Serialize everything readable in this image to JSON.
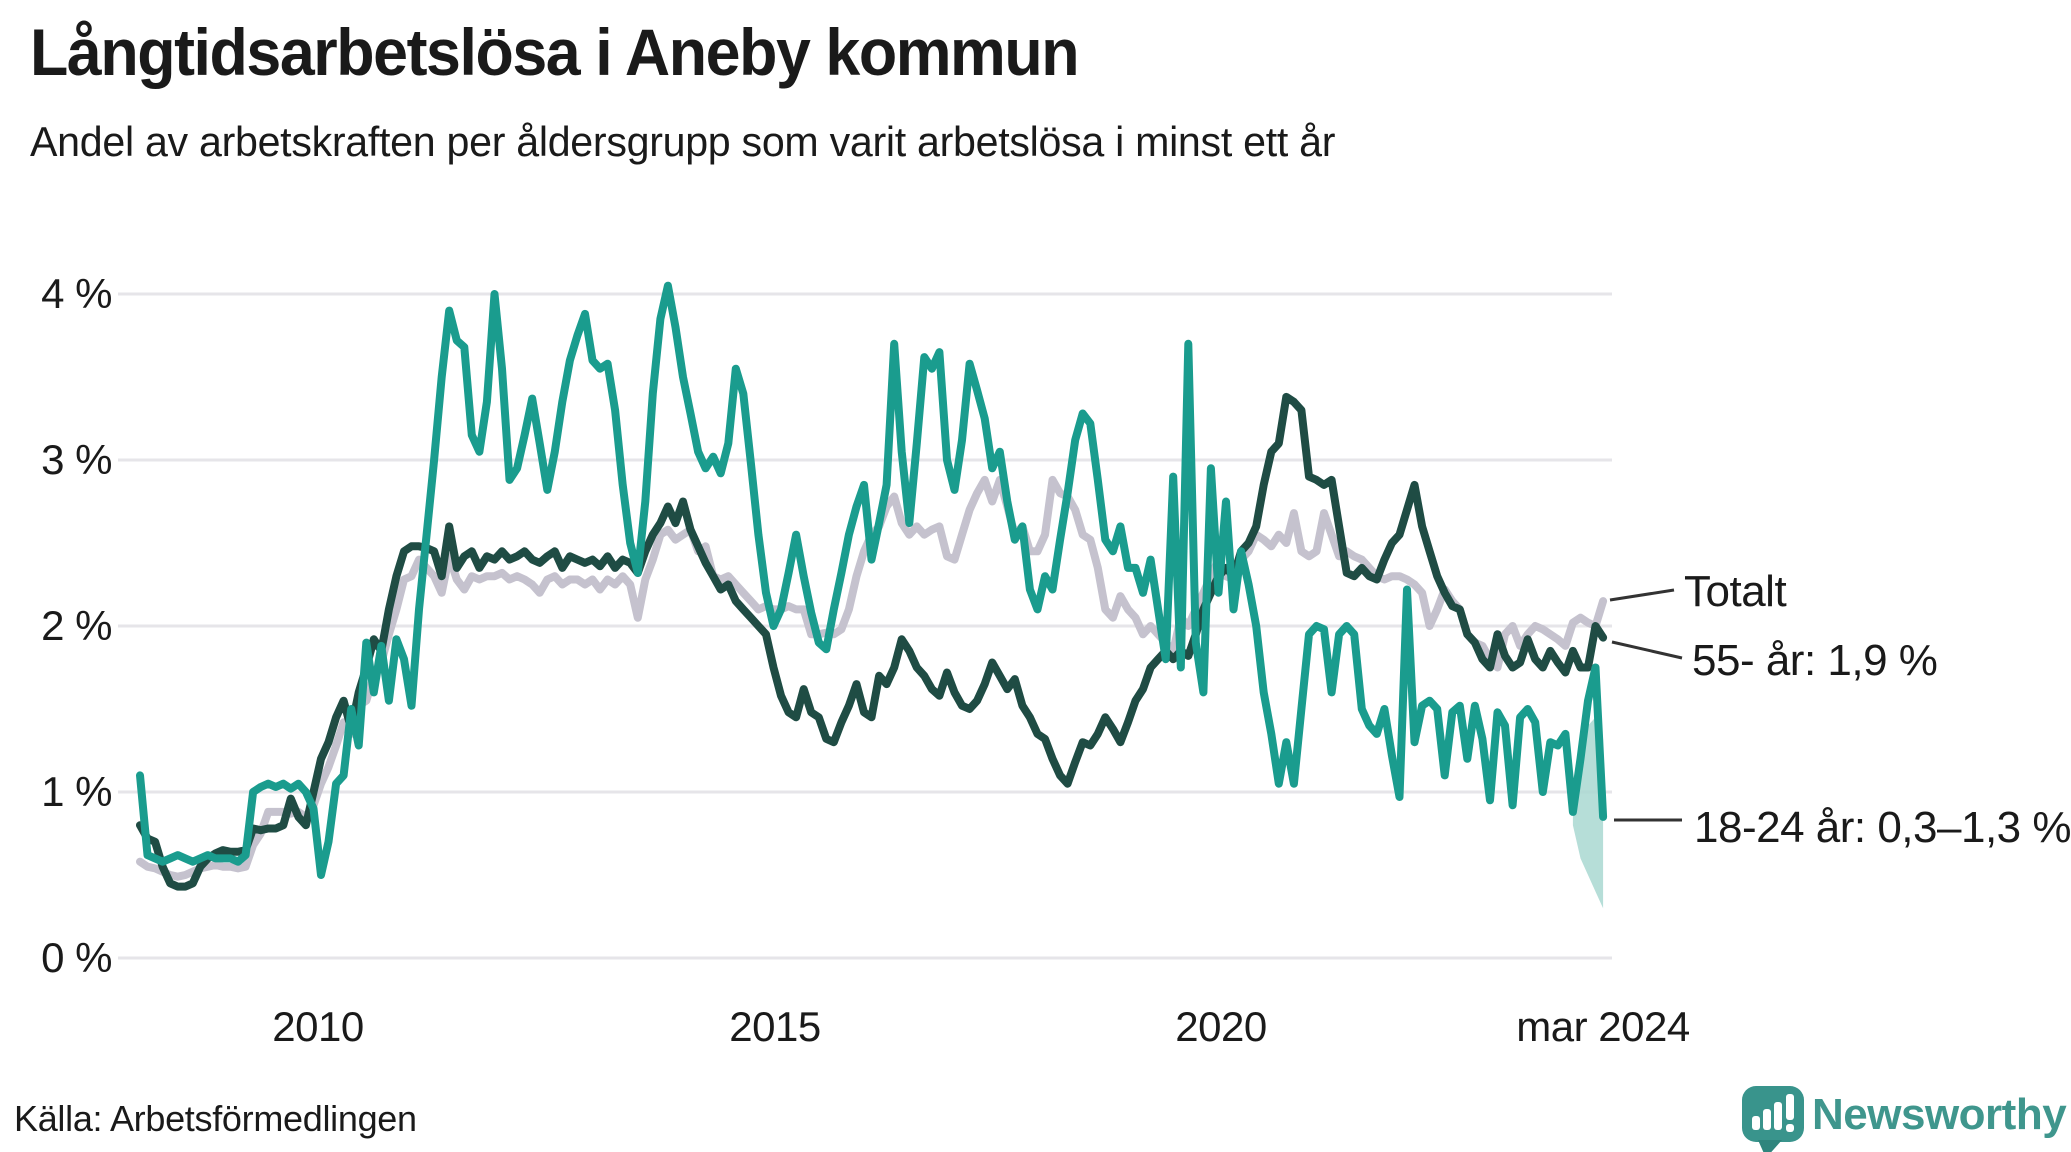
{
  "header": {
    "title": "Långtidsarbetslösa i Aneby kommun",
    "subtitle": "Andel av arbetskraften per åldersgrupp som varit arbetslösa i minst ett år"
  },
  "footer": {
    "source": "Källa: Arbetsförmedlingen",
    "brand": "Newsworthy"
  },
  "colors": {
    "teal_line": "#1a9c8e",
    "dark_line": "#1f4c44",
    "gray_line": "#c5c2ce",
    "band": "#a9d8d1",
    "grid": "#e6e5e9",
    "text": "#1a1a1a",
    "brand_teal": "#3f968d"
  },
  "chart_data": {
    "type": "line",
    "title": "Långtidsarbetslösa i Aneby kommun",
    "subtitle": "Andel av arbetskraften per åldersgrupp som varit arbetslösa i minst ett år",
    "x_start": "2008-01",
    "x_end": "2024-03",
    "frequency": "monthly",
    "ylim": [
      0,
      4.3
    ],
    "grid": "horizontal-only",
    "yticks": [
      {
        "label": "4 %",
        "value": 4
      },
      {
        "label": "3 %",
        "value": 3
      },
      {
        "label": "2 %",
        "value": 2
      },
      {
        "label": "1 %",
        "value": 1
      },
      {
        "label": "0 %",
        "value": 0
      }
    ],
    "xticks": [
      {
        "label": "2010",
        "year": 2010
      },
      {
        "label": "2015",
        "year": 2015
      },
      {
        "label": "2020",
        "year": 2020
      },
      {
        "label": "mar 2024",
        "year": 2024.25
      }
    ],
    "annotations": [
      {
        "label": "Totalt",
        "series": "Totalt"
      },
      {
        "label": "55- år: 1,9 %",
        "series": "55- år"
      },
      {
        "label": "18-24 år: 0,3–1,3 %",
        "series": "18-24 år"
      }
    ],
    "series": [
      {
        "name": "Totalt",
        "color": "#c5c2ce",
        "values": [
          0.58,
          0.55,
          0.54,
          0.52,
          0.5,
          0.49,
          0.5,
          0.52,
          0.54,
          0.55,
          0.56,
          0.55,
          0.55,
          0.54,
          0.55,
          0.68,
          0.75,
          0.88,
          0.88,
          0.88,
          0.87,
          0.88,
          0.85,
          0.92,
          1.05,
          1.15,
          1.28,
          1.42,
          1.35,
          1.52,
          1.55,
          1.7,
          1.78,
          1.95,
          2.1,
          2.28,
          2.3,
          2.4,
          2.35,
          2.3,
          2.2,
          2.42,
          2.28,
          2.22,
          2.3,
          2.28,
          2.3,
          2.3,
          2.32,
          2.28,
          2.3,
          2.28,
          2.25,
          2.2,
          2.28,
          2.3,
          2.25,
          2.28,
          2.28,
          2.25,
          2.28,
          2.22,
          2.28,
          2.25,
          2.3,
          2.25,
          2.05,
          2.28,
          2.4,
          2.55,
          2.58,
          2.52,
          2.55,
          2.58,
          2.45,
          2.48,
          2.3,
          2.28,
          2.3,
          2.25,
          2.2,
          2.15,
          2.1,
          2.12,
          2.1,
          2.1,
          2.12,
          2.1,
          2.1,
          1.95,
          1.95,
          1.96,
          1.95,
          1.98,
          2.1,
          2.3,
          2.45,
          2.55,
          2.6,
          2.72,
          2.78,
          2.62,
          2.55,
          2.6,
          2.55,
          2.58,
          2.6,
          2.42,
          2.4,
          2.55,
          2.7,
          2.8,
          2.88,
          2.75,
          2.88,
          2.72,
          2.55,
          2.6,
          2.45,
          2.45,
          2.55,
          2.88,
          2.8,
          2.78,
          2.7,
          2.55,
          2.52,
          2.35,
          2.1,
          2.05,
          2.18,
          2.1,
          2.05,
          1.95,
          2.0,
          1.95,
          1.9,
          1.85,
          2.05,
          2.0,
          2.1,
          2.2,
          2.3,
          2.4,
          2.3,
          2.28,
          2.4,
          2.45,
          2.55,
          2.52,
          2.48,
          2.55,
          2.5,
          2.68,
          2.45,
          2.42,
          2.45,
          2.68,
          2.55,
          2.42,
          2.45,
          2.42,
          2.4,
          2.35,
          2.3,
          2.28,
          2.3,
          2.3,
          2.28,
          2.25,
          2.2,
          2.0,
          2.1,
          2.22,
          2.15,
          2.1,
          1.95,
          1.9,
          1.88,
          1.8,
          1.75,
          1.95,
          2.0,
          1.88,
          1.95,
          2.0,
          1.98,
          1.95,
          1.92,
          1.88,
          2.02,
          2.05,
          2.02,
          2.0,
          2.15
        ]
      },
      {
        "name": "55- år",
        "color": "#1f4c44",
        "latest_label_value": "1,9 %",
        "values": [
          0.8,
          0.72,
          0.7,
          0.55,
          0.45,
          0.43,
          0.43,
          0.45,
          0.55,
          0.6,
          0.63,
          0.65,
          0.64,
          0.64,
          0.65,
          0.78,
          0.77,
          0.78,
          0.78,
          0.8,
          0.96,
          0.85,
          0.8,
          1.0,
          1.2,
          1.3,
          1.45,
          1.55,
          1.38,
          1.6,
          1.75,
          1.92,
          1.85,
          2.1,
          2.3,
          2.45,
          2.48,
          2.48,
          2.47,
          2.45,
          2.3,
          2.6,
          2.35,
          2.42,
          2.45,
          2.35,
          2.42,
          2.4,
          2.45,
          2.4,
          2.42,
          2.45,
          2.4,
          2.38,
          2.42,
          2.45,
          2.35,
          2.42,
          2.4,
          2.38,
          2.4,
          2.36,
          2.42,
          2.35,
          2.4,
          2.38,
          2.32,
          2.45,
          2.55,
          2.62,
          2.72,
          2.62,
          2.75,
          2.58,
          2.48,
          2.38,
          2.3,
          2.22,
          2.25,
          2.15,
          2.1,
          2.05,
          2.0,
          1.95,
          1.75,
          1.58,
          1.48,
          1.45,
          1.62,
          1.48,
          1.45,
          1.32,
          1.3,
          1.42,
          1.52,
          1.65,
          1.48,
          1.45,
          1.7,
          1.65,
          1.75,
          1.92,
          1.85,
          1.75,
          1.7,
          1.62,
          1.58,
          1.72,
          1.6,
          1.52,
          1.5,
          1.55,
          1.65,
          1.78,
          1.7,
          1.62,
          1.68,
          1.52,
          1.45,
          1.35,
          1.32,
          1.2,
          1.1,
          1.05,
          1.18,
          1.3,
          1.28,
          1.35,
          1.45,
          1.38,
          1.3,
          1.42,
          1.55,
          1.62,
          1.75,
          1.8,
          1.85,
          1.8,
          1.85,
          1.82,
          1.95,
          2.1,
          2.2,
          2.3,
          2.35,
          2.3,
          2.45,
          2.5,
          2.6,
          2.85,
          3.05,
          3.1,
          3.38,
          3.35,
          3.3,
          2.9,
          2.88,
          2.85,
          2.88,
          2.6,
          2.32,
          2.3,
          2.35,
          2.3,
          2.28,
          2.4,
          2.5,
          2.55,
          2.7,
          2.85,
          2.6,
          2.45,
          2.3,
          2.2,
          2.12,
          2.1,
          1.95,
          1.9,
          1.8,
          1.75,
          1.95,
          1.82,
          1.75,
          1.78,
          1.92,
          1.8,
          1.75,
          1.85,
          1.78,
          1.72,
          1.85,
          1.75,
          1.75,
          2.0,
          1.93
        ]
      },
      {
        "name": "18-24 år",
        "color": "#1a9c8e",
        "latest_label_value": "0,3–1,3 %",
        "values": [
          1.1,
          0.62,
          0.6,
          0.58,
          0.6,
          0.62,
          0.6,
          0.58,
          0.6,
          0.62,
          0.6,
          0.6,
          0.6,
          0.58,
          0.62,
          1.0,
          1.03,
          1.05,
          1.03,
          1.05,
          1.02,
          1.05,
          1.0,
          0.9,
          0.5,
          0.7,
          1.05,
          1.1,
          1.5,
          1.28,
          1.9,
          1.6,
          1.88,
          1.55,
          1.92,
          1.8,
          1.52,
          2.1,
          2.55,
          3.0,
          3.5,
          3.9,
          3.72,
          3.68,
          3.15,
          3.05,
          3.35,
          4.0,
          3.55,
          2.88,
          2.95,
          3.15,
          3.37,
          3.1,
          2.82,
          3.05,
          3.35,
          3.6,
          3.75,
          3.88,
          3.6,
          3.55,
          3.58,
          3.3,
          2.85,
          2.5,
          2.32,
          2.75,
          3.4,
          3.85,
          4.05,
          3.8,
          3.5,
          3.28,
          3.05,
          2.95,
          3.02,
          2.92,
          3.1,
          3.55,
          3.4,
          2.98,
          2.55,
          2.2,
          2.0,
          2.1,
          2.32,
          2.55,
          2.3,
          2.08,
          1.9,
          1.86,
          2.1,
          2.32,
          2.55,
          2.72,
          2.85,
          2.4,
          2.62,
          2.85,
          3.7,
          3.05,
          2.62,
          3.1,
          3.62,
          3.55,
          3.65,
          3.0,
          2.82,
          3.12,
          3.58,
          3.42,
          3.25,
          2.95,
          3.05,
          2.75,
          2.52,
          2.6,
          2.22,
          2.1,
          2.3,
          2.22,
          2.52,
          2.8,
          3.12,
          3.28,
          3.22,
          2.88,
          2.52,
          2.45,
          2.6,
          2.35,
          2.35,
          2.2,
          2.4,
          2.1,
          1.8,
          2.9,
          1.75,
          3.7,
          1.9,
          1.6,
          2.95,
          2.2,
          2.75,
          2.1,
          2.45,
          2.25,
          2.0,
          1.6,
          1.35,
          1.05,
          1.3,
          1.05,
          1.5,
          1.95,
          2.0,
          1.98,
          1.6,
          1.95,
          2.0,
          1.95,
          1.5,
          1.4,
          1.35,
          1.5,
          1.22,
          0.97,
          2.22,
          1.3,
          1.52,
          1.55,
          1.5,
          1.1,
          1.48,
          1.52,
          1.2,
          1.52,
          1.32,
          0.95,
          1.48,
          1.4,
          0.92,
          1.45,
          1.5,
          1.42,
          1.0,
          1.3,
          1.28,
          1.35,
          0.88,
          1.2,
          1.55,
          1.75,
          0.85
        ]
      }
    ],
    "uncertainty_band": {
      "series": "18-24 år",
      "color": "#a9d8d1",
      "start_index": 190,
      "lo": [
        0.8,
        0.6,
        0.5,
        0.4,
        0.3
      ],
      "hi": [
        0.95,
        1.3,
        1.4,
        1.45,
        1.32
      ],
      "note_range": "0,3–1,3 %"
    }
  }
}
